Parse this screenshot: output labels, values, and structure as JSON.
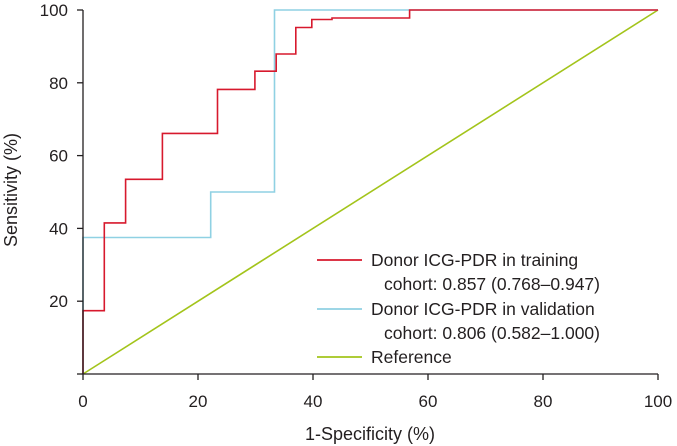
{
  "chart_data": {
    "type": "line",
    "title": "",
    "xlabel": "1-Specificity (%)",
    "ylabel": "Sensitivity (%)",
    "xlim": [
      0,
      100
    ],
    "ylim": [
      0,
      100
    ],
    "xticks": [
      "0",
      "20",
      "40",
      "60",
      "80",
      "100"
    ],
    "yticks": [
      "0",
      "20",
      "40",
      "60",
      "80",
      "100"
    ],
    "legend_position": "bottom-right",
    "series": [
      {
        "name": "Donor ICG-PDR in training",
        "name_line2": "cohort: 0.857 (0.768–0.947)",
        "color": "#d7192d",
        "x": [
          0,
          0,
          3.7,
          3.7,
          7.4,
          7.4,
          13.8,
          13.8,
          23.4,
          23.4,
          29.9,
          29.9,
          33.6,
          33.6,
          37,
          37,
          39.8,
          39.8,
          43.3,
          43.3,
          56.8,
          56.8,
          100
        ],
        "y": [
          0,
          17.4,
          17.4,
          41.5,
          41.5,
          53.5,
          53.5,
          66.1,
          66.1,
          78.2,
          78.2,
          83.2,
          83.2,
          87.9,
          87.9,
          95.2,
          95.2,
          97.4,
          97.4,
          97.8,
          97.8,
          100,
          100
        ]
      },
      {
        "name": "Donor ICG-PDR in validation",
        "name_line2": "cohort: 0.806 (0.582–1.000)",
        "color": "#8fd1e3",
        "x": [
          0,
          0,
          22.2,
          22.2,
          33.3,
          33.3,
          100
        ],
        "y": [
          0,
          37.5,
          37.5,
          50,
          50,
          100,
          100
        ]
      },
      {
        "name": "Reference",
        "name_line2": "",
        "color": "#a3c41b",
        "x": [
          0,
          100
        ],
        "y": [
          0,
          100
        ]
      }
    ]
  }
}
